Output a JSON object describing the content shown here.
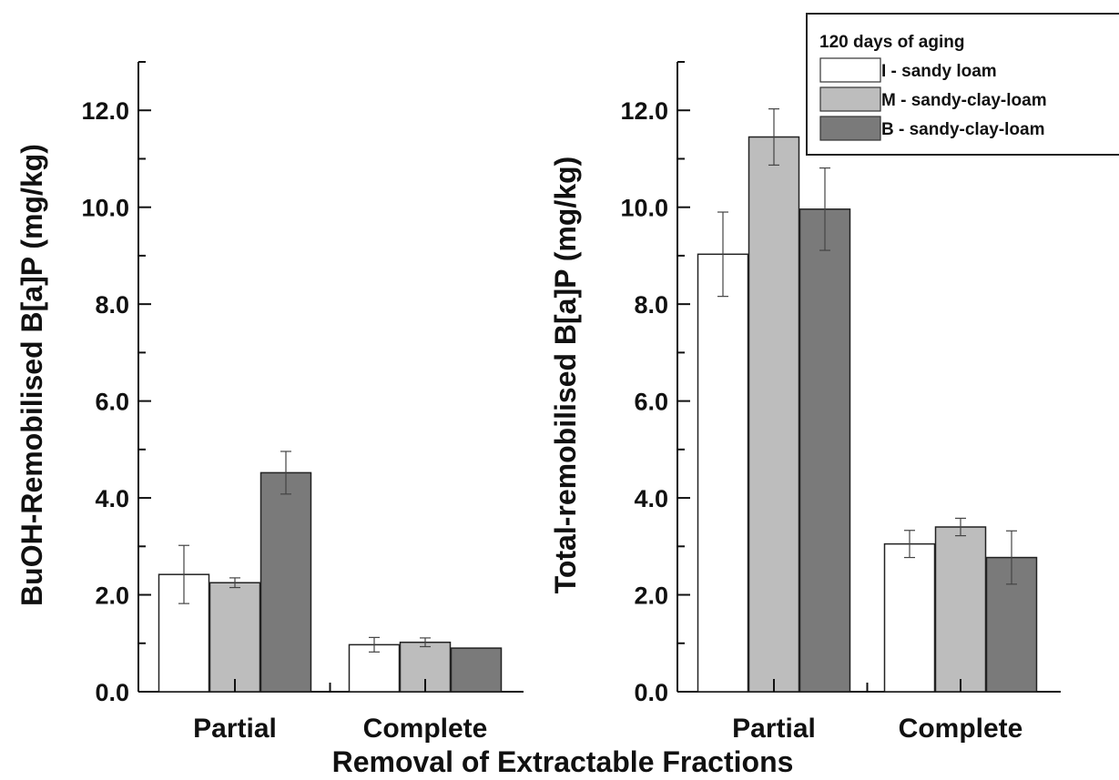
{
  "xlabel": "Removal of Extractable Fractions",
  "legend": {
    "title": "120 days of aging",
    "items": [
      {
        "label": "I - sandy loam",
        "color": "#ffffff"
      },
      {
        "label": "M - sandy-clay-loam",
        "color": "#bdbdbd"
      },
      {
        "label": "B - sandy-clay-loam",
        "color": "#7a7a7a"
      }
    ]
  },
  "chart_data": [
    {
      "type": "bar",
      "ylabel": "BuOH-Remobilised B[a]P (mg/kg)",
      "xlabel": "Removal of Extractable Fractions",
      "categories": [
        "Partial",
        "Complete"
      ],
      "ylim": [
        0,
        13
      ],
      "yticks": [
        "0.0",
        "2.0",
        "4.0",
        "6.0",
        "8.0",
        "10.0",
        "12.0"
      ],
      "grid": false,
      "series": [
        {
          "name": "I - sandy loam",
          "color": "#ffffff",
          "values": [
            2.42,
            0.97
          ],
          "errors": [
            0.6,
            0.15
          ]
        },
        {
          "name": "M - sandy-clay-loam",
          "color": "#bdbdbd",
          "values": [
            2.25,
            1.02
          ],
          "errors": [
            0.1,
            0.09
          ]
        },
        {
          "name": "B - sandy-clay-loam",
          "color": "#7a7a7a",
          "values": [
            4.52,
            0.9
          ],
          "errors": [
            0.44,
            0.0
          ]
        }
      ]
    },
    {
      "type": "bar",
      "ylabel": "Total-remobilised B[a]P (mg/kg)",
      "xlabel": "Removal of Extractable Fractions",
      "categories": [
        "Partial",
        "Complete"
      ],
      "ylim": [
        0,
        13
      ],
      "yticks": [
        "0.0",
        "2.0",
        "4.0",
        "6.0",
        "8.0",
        "10.0",
        "12.0"
      ],
      "grid": false,
      "legend_position": "top-right",
      "series": [
        {
          "name": "I - sandy loam",
          "color": "#ffffff",
          "values": [
            9.03,
            3.05
          ],
          "errors": [
            0.87,
            0.28
          ]
        },
        {
          "name": "M - sandy-clay-loam",
          "color": "#bdbdbd",
          "values": [
            11.45,
            3.4
          ],
          "errors": [
            0.58,
            0.18
          ]
        },
        {
          "name": "B - sandy-clay-loam",
          "color": "#7a7a7a",
          "values": [
            9.96,
            2.77
          ],
          "errors": [
            0.85,
            0.55
          ]
        }
      ]
    }
  ]
}
